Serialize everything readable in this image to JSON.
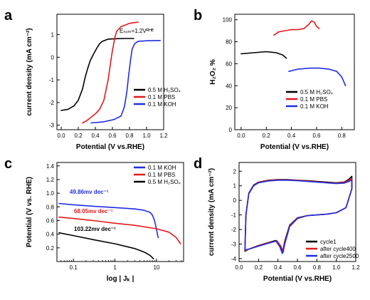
{
  "chart_data": [
    {
      "panel": "a",
      "type": "line",
      "xlabel": "Potential (V vs.RHE)",
      "ylabel": "current density (mA cm⁻²)",
      "xlim": [
        -0.05,
        1.2
      ],
      "ylim": [
        -3.2,
        1.9
      ],
      "xticks": [
        "0.0",
        "0.2",
        "0.4",
        "0.6",
        "0.8",
        "1.0",
        "1.2"
      ],
      "yticks": [
        "1",
        "0",
        "-1",
        "-2",
        "-3"
      ],
      "annotation": "Eₙₒₘ=1.2Vᴿᴴᴱ",
      "legend_position": "bottom-right",
      "series": [
        {
          "name": "0.5 M H₂SO₄",
          "color": "#000000",
          "x": [
            0.0,
            0.08,
            0.15,
            0.2,
            0.25,
            0.28,
            0.31,
            0.34,
            0.38,
            0.42,
            0.45,
            0.48,
            0.55,
            0.65,
            0.75,
            0.85
          ],
          "y": [
            -2.35,
            -2.3,
            -2.15,
            -1.9,
            -1.4,
            -0.9,
            -0.5,
            -0.15,
            0.15,
            0.42,
            0.6,
            0.7,
            0.8,
            0.82,
            0.83,
            0.83
          ]
        },
        {
          "name": "0.1 M PBS",
          "color": "#e31a1c",
          "x": [
            0.25,
            0.3,
            0.35,
            0.4,
            0.45,
            0.5,
            0.55,
            0.58,
            0.6,
            0.63,
            0.65,
            0.7,
            0.8,
            0.9
          ],
          "y": [
            -2.9,
            -2.8,
            -2.65,
            -2.5,
            -2.3,
            -1.9,
            -1.0,
            -0.2,
            0.3,
            0.9,
            1.15,
            1.35,
            1.5,
            1.55
          ]
        },
        {
          "name": "0.1 M KOH",
          "color": "#1f2ee0",
          "x": [
            0.35,
            0.5,
            0.62,
            0.7,
            0.74,
            0.77,
            0.79,
            0.81,
            0.83,
            0.86,
            0.9,
            1.0,
            1.16
          ],
          "y": [
            -2.9,
            -2.85,
            -2.75,
            -2.6,
            -2.2,
            -1.5,
            -0.8,
            -0.2,
            0.35,
            0.6,
            0.7,
            0.73,
            0.74
          ]
        }
      ]
    },
    {
      "panel": "b",
      "type": "line",
      "xlabel": "Potential (V vs.RHE)",
      "ylabel": "H₂O₂ %",
      "xlim": [
        -0.05,
        0.9
      ],
      "ylim": [
        0,
        105
      ],
      "xticks": [
        "0.0",
        "0.2",
        "0.4",
        "0.6",
        "0.8"
      ],
      "yticks": [
        "0",
        "20",
        "40",
        "60",
        "80",
        "100"
      ],
      "legend_position": "bottom-right",
      "series": [
        {
          "name": "0.5 M H₂SO₄",
          "color": "#000000",
          "x": [
            0.0,
            0.1,
            0.2,
            0.28,
            0.33,
            0.36
          ],
          "y": [
            69,
            70,
            71,
            70,
            68,
            65
          ]
        },
        {
          "name": "0.1 M PBS",
          "color": "#e31a1c",
          "x": [
            0.26,
            0.3,
            0.35,
            0.4,
            0.45,
            0.5,
            0.54,
            0.56,
            0.58,
            0.6,
            0.62
          ],
          "y": [
            86,
            89,
            90,
            91,
            91,
            92,
            96,
            99,
            98,
            94,
            92
          ]
        },
        {
          "name": "0.1 M KOH",
          "color": "#1f2ee0",
          "x": [
            0.38,
            0.45,
            0.55,
            0.62,
            0.7,
            0.76,
            0.8,
            0.83
          ],
          "y": [
            53,
            55,
            56,
            56,
            55,
            53,
            48,
            40
          ]
        }
      ]
    },
    {
      "panel": "c",
      "type": "line",
      "xscale": "log",
      "xlabel": "log | Jₖ |",
      "ylabel": "Potential (V vs. RHE)",
      "xlim": [
        0.04,
        45
      ],
      "ylim": [
        0.0,
        1.45
      ],
      "xticks": [
        "0.1",
        "1",
        "10"
      ],
      "yticks": [
        "0.2",
        "0.4",
        "0.6",
        "0.8",
        "1.0",
        "1.2",
        "1.4"
      ],
      "legend_position": "top-right",
      "series": [
        {
          "name": "0.1 M KOH",
          "color": "#1f2ee0",
          "slope_label": "49.86mv dec⁻¹",
          "x": [
            0.045,
            0.1,
            0.3,
            1,
            3,
            5,
            7,
            8,
            9,
            10,
            11
          ],
          "y": [
            0.85,
            0.83,
            0.81,
            0.79,
            0.77,
            0.75,
            0.72,
            0.68,
            0.6,
            0.47,
            0.35
          ]
        },
        {
          "name": "0.1 M PBS",
          "color": "#e31a1c",
          "slope_label": "68.05mv dec⁻¹",
          "x": [
            0.045,
            0.1,
            0.3,
            1,
            3,
            10,
            20,
            30,
            38
          ],
          "y": [
            0.65,
            0.63,
            0.6,
            0.56,
            0.53,
            0.48,
            0.43,
            0.35,
            0.26
          ]
        },
        {
          "name": "0.5 M H₂SO₄",
          "color": "#000000",
          "slope_label": "103.22mv dec⁻¹",
          "x": [
            0.045,
            0.1,
            0.3,
            1,
            3,
            5,
            7,
            8.5
          ],
          "y": [
            0.42,
            0.38,
            0.32,
            0.26,
            0.19,
            0.14,
            0.09,
            0.04
          ]
        }
      ]
    },
    {
      "panel": "d",
      "type": "line",
      "xlabel": "Potential (V vs.RHE)",
      "ylabel": "current density (mA cm⁻²)",
      "xlim": [
        0.0,
        1.2
      ],
      "ylim": [
        -4.2,
        2.6
      ],
      "xticks": [
        "0.0",
        "0.2",
        "0.4",
        "0.6",
        "0.8",
        "1.0",
        "1.2"
      ],
      "yticks": [
        "-4",
        "-3",
        "-2",
        "-1",
        "0",
        "1",
        "2"
      ],
      "legend_position": "bottom-right",
      "series": [
        {
          "name": "cycle1",
          "color": "#000000",
          "x": [
            0.06,
            0.07,
            0.1,
            0.15,
            0.2,
            0.3,
            0.4,
            0.5,
            0.6,
            0.7,
            0.8,
            0.9,
            1.0,
            1.08,
            1.13,
            1.16,
            1.16,
            1.1,
            1.0,
            0.9,
            0.8,
            0.7,
            0.6,
            0.52,
            0.47,
            0.45,
            0.42,
            0.38,
            0.3,
            0.2,
            0.1,
            0.06
          ],
          "y": [
            -3.5,
            -1.0,
            0.5,
            1.05,
            1.25,
            1.38,
            1.42,
            1.42,
            1.38,
            1.35,
            1.3,
            1.25,
            1.2,
            1.25,
            1.45,
            1.65,
            0.8,
            -0.5,
            -0.85,
            -0.95,
            -1.0,
            -1.05,
            -1.2,
            -1.7,
            -2.8,
            -3.5,
            -3.1,
            -2.75,
            -2.9,
            -3.1,
            -3.35,
            -3.5
          ]
        },
        {
          "name": "after cycle400",
          "color": "#e31a1c",
          "x": [
            0.06,
            0.07,
            0.1,
            0.15,
            0.2,
            0.3,
            0.4,
            0.5,
            0.6,
            0.7,
            0.8,
            0.9,
            1.0,
            1.08,
            1.13,
            1.16,
            1.16,
            1.1,
            1.0,
            0.9,
            0.8,
            0.7,
            0.6,
            0.52,
            0.47,
            0.455,
            0.43,
            0.39,
            0.3,
            0.2,
            0.1,
            0.06
          ],
          "y": [
            -3.45,
            -1.0,
            0.5,
            1.02,
            1.23,
            1.36,
            1.4,
            1.4,
            1.37,
            1.33,
            1.28,
            1.22,
            1.18,
            1.22,
            1.38,
            1.5,
            0.8,
            -0.5,
            -0.85,
            -0.95,
            -1.0,
            -1.05,
            -1.22,
            -1.75,
            -2.9,
            -3.55,
            -3.15,
            -2.78,
            -2.92,
            -3.12,
            -3.35,
            -3.45
          ]
        },
        {
          "name": "after cycle2500",
          "color": "#1f2ee0",
          "x": [
            0.06,
            0.07,
            0.1,
            0.15,
            0.2,
            0.3,
            0.4,
            0.5,
            0.6,
            0.7,
            0.8,
            0.9,
            1.0,
            1.08,
            1.13,
            1.16,
            1.16,
            1.1,
            1.0,
            0.9,
            0.8,
            0.7,
            0.6,
            0.52,
            0.47,
            0.445,
            0.42,
            0.38,
            0.3,
            0.2,
            0.1,
            0.06
          ],
          "y": [
            -3.4,
            -1.0,
            0.45,
            1.0,
            1.2,
            1.33,
            1.38,
            1.38,
            1.35,
            1.3,
            1.25,
            1.2,
            1.15,
            1.18,
            1.3,
            1.4,
            0.8,
            -0.5,
            -0.85,
            -0.95,
            -1.0,
            -1.05,
            -1.25,
            -1.8,
            -3.0,
            -3.65,
            -3.2,
            -2.8,
            -2.95,
            -3.15,
            -3.35,
            -3.4
          ]
        }
      ]
    }
  ]
}
